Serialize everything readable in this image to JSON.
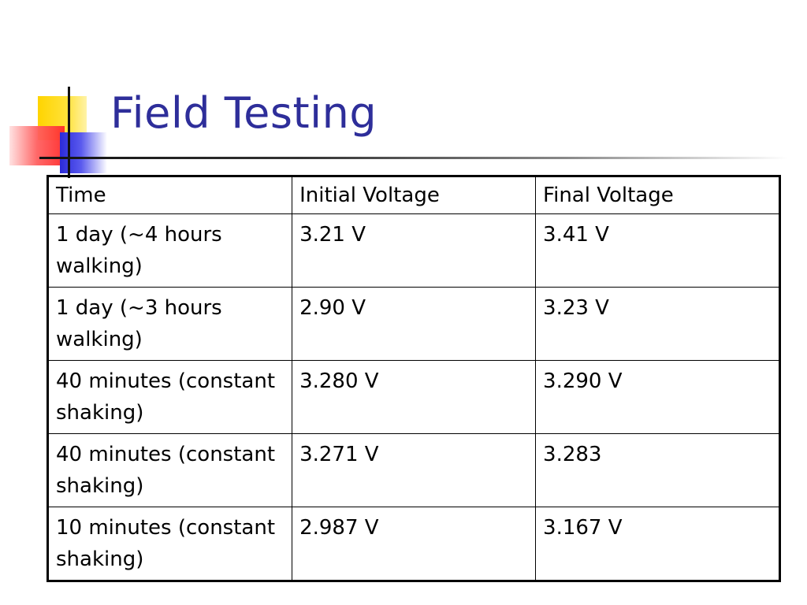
{
  "slide": {
    "title": "Field Testing"
  },
  "table": {
    "headers": [
      "Time",
      "Initial Voltage",
      "Final Voltage"
    ],
    "rows": [
      [
        "1 day (~4 hours walking)",
        "3.21 V",
        "3.41 V"
      ],
      [
        "1 day (~3 hours walking)",
        "2.90 V",
        "3.23 V"
      ],
      [
        "40 minutes (constant shaking)",
        "3.280 V",
        "3.290 V"
      ],
      [
        "40 minutes (constant shaking)",
        "3.271 V",
        "3.283"
      ],
      [
        "10 minutes (constant shaking)",
        "2.987 V",
        "3.167 V"
      ]
    ]
  },
  "colors": {
    "title": "#2e2e9a",
    "accent_yellow": "#ffd400",
    "accent_blue": "#2a2ad8",
    "accent_red": "#ff2a2a"
  }
}
